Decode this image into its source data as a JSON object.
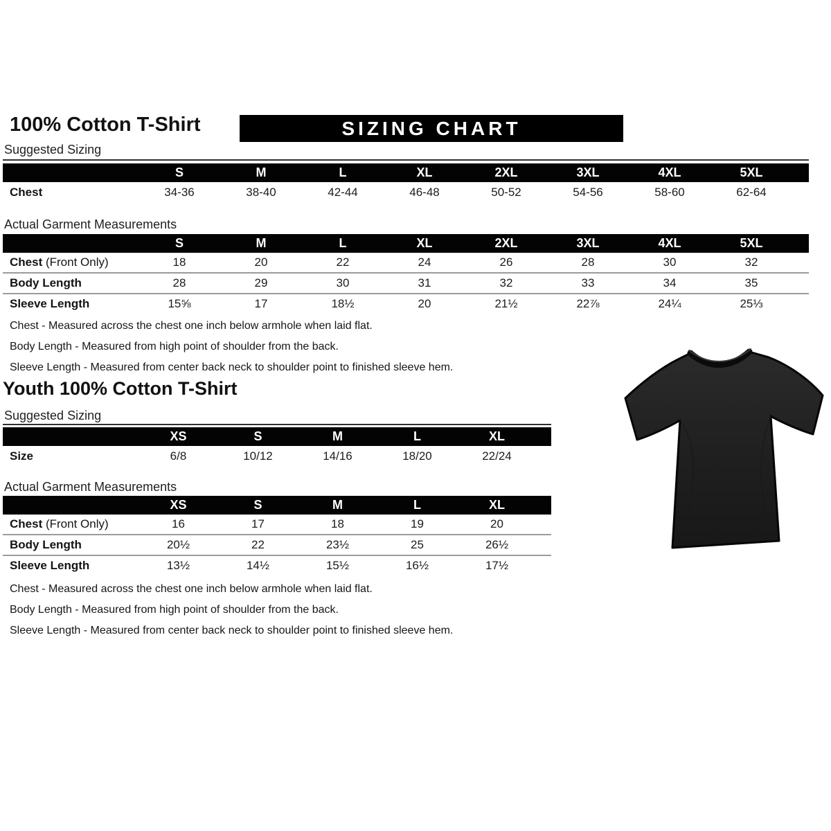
{
  "header": {
    "title": "100% Cotton T-Shirt",
    "banner": "SIZING CHART"
  },
  "adult": {
    "suggested_label": "Suggested Sizing",
    "suggested": {
      "columns": [
        "S",
        "M",
        "L",
        "XL",
        "2XL",
        "3XL",
        "4XL",
        "5XL"
      ],
      "rows": [
        {
          "label": "Chest",
          "suffix": "",
          "values": [
            "34-36",
            "38-40",
            "42-44",
            "46-48",
            "50-52",
            "54-56",
            "58-60",
            "62-64"
          ]
        }
      ]
    },
    "actual_label": "Actual Garment Measurements",
    "actual": {
      "columns": [
        "S",
        "M",
        "L",
        "XL",
        "2XL",
        "3XL",
        "4XL",
        "5XL"
      ],
      "rows": [
        {
          "label": "Chest",
          "suffix": " (Front Only)",
          "values": [
            "18",
            "20",
            "22",
            "24",
            "26",
            "28",
            "30",
            "32"
          ]
        },
        {
          "label": "Body Length",
          "suffix": "",
          "values": [
            "28",
            "29",
            "30",
            "31",
            "32",
            "33",
            "34",
            "35"
          ]
        },
        {
          "label": "Sleeve Length",
          "suffix": "",
          "values": [
            "15⅝",
            "17",
            "18½",
            "20",
            "21½",
            "22⅞",
            "24¼",
            "25⅓"
          ]
        }
      ]
    },
    "notes": [
      "Chest - Measured across the chest one inch below armhole when laid flat.",
      "Body Length - Measured from high point of shoulder from the back.",
      "Sleeve Length - Measured from center back neck to shoulder point to finished sleeve hem."
    ]
  },
  "youth": {
    "title": "Youth 100% Cotton T-Shirt",
    "suggested_label": "Suggested Sizing",
    "suggested": {
      "columns": [
        "XS",
        "S",
        "M",
        "L",
        "XL"
      ],
      "rows": [
        {
          "label": "Size",
          "suffix": "",
          "values": [
            "6/8",
            "10/12",
            "14/16",
            "18/20",
            "22/24"
          ]
        }
      ]
    },
    "actual_label": "Actual Garment Measurements",
    "actual": {
      "columns": [
        "XS",
        "S",
        "M",
        "L",
        "XL"
      ],
      "rows": [
        {
          "label": "Chest",
          "suffix": " (Front Only)",
          "values": [
            "16",
            "17",
            "18",
            "19",
            "20"
          ]
        },
        {
          "label": "Body Length",
          "suffix": "",
          "values": [
            "20½",
            "22",
            "23½",
            "25",
            "26½"
          ]
        },
        {
          "label": "Sleeve Length",
          "suffix": "",
          "values": [
            "13½",
            "14½",
            "15½",
            "16½",
            "17½"
          ]
        }
      ]
    },
    "notes": [
      "Chest - Measured across the chest one inch below armhole when laid flat.",
      "Body Length - Measured from high point of shoulder from the back.",
      "Sleeve Length - Measured from center back neck to shoulder point to finished sleeve hem."
    ]
  },
  "tshirt": {
    "name": "black-t-shirt",
    "body_color": "#222222",
    "outline_color": "#060606"
  },
  "colors": {
    "bar": "#000000",
    "bar_text": "#ffffff",
    "text": "#1a1a1a",
    "divider": "#9b9b9b"
  }
}
